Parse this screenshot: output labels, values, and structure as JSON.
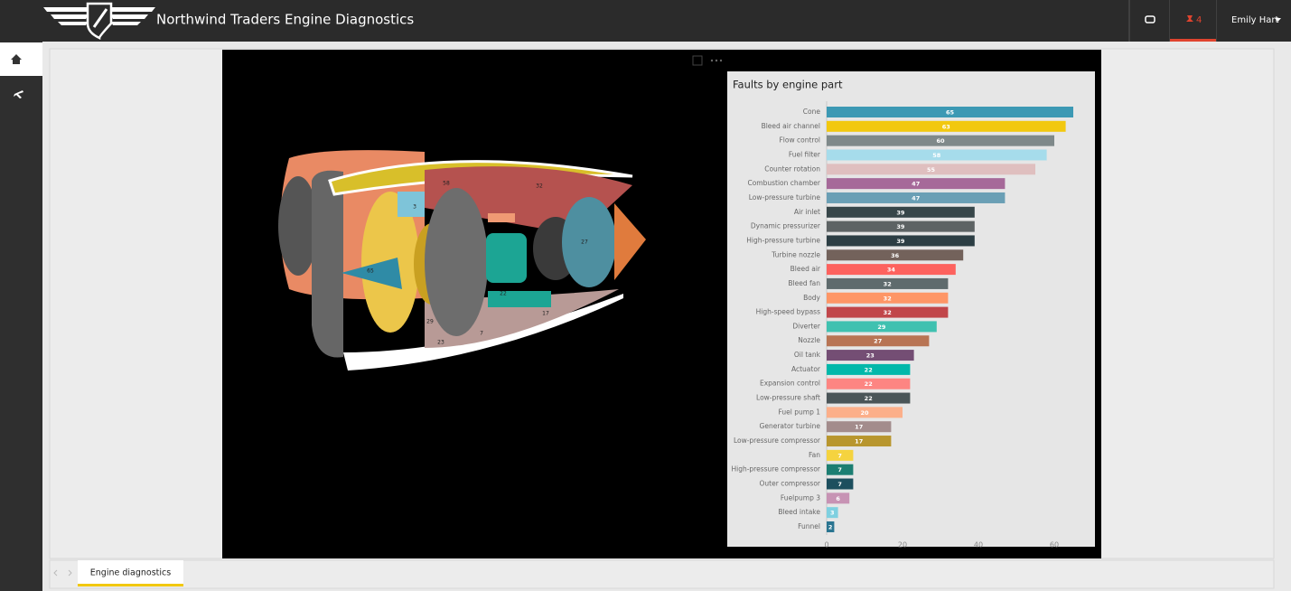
{
  "header": {
    "title": "Northwind Traders Engine Diagnostics"
  },
  "notifications": {
    "count": 4
  },
  "user": {
    "name": "Emily Hart"
  },
  "chart_data": {
    "type": "bar",
    "orientation": "horizontal",
    "title": "Faults by engine part",
    "categories": [
      "Cone",
      "Bleed air channel",
      "Flow control",
      "Fuel filter",
      "Counter rotation",
      "Combustion chamber",
      "Low-pressure turbine",
      "Air inlet",
      "Dynamic pressurizer",
      "High-pressure turbine",
      "Turbine nozzle",
      "Bleed air",
      "Bleed fan",
      "Body",
      "High-speed bypass",
      "Diverter",
      "Nozzle",
      "Oil tank",
      "Actuator",
      "Expansion control",
      "Low-pressure shaft",
      "Fuel pump 1",
      "Generator turbine",
      "Low-pressure compressor",
      "Fan",
      "High-pressure compressor",
      "Outer compressor",
      "Fuelpump 3",
      "Bleed intake",
      "Funnel"
    ],
    "values": [
      65,
      63,
      60,
      58,
      55,
      47,
      47,
      39,
      39,
      39,
      36,
      34,
      32,
      32,
      32,
      29,
      27,
      23,
      22,
      22,
      22,
      20,
      17,
      17,
      7,
      7,
      7,
      6,
      3,
      2
    ],
    "colors": [
      "#3c99b4",
      "#f2c80f",
      "#7f898a",
      "#a6dceb",
      "#dfbfbf",
      "#a66999",
      "#6a9fb5",
      "#374649",
      "#5d6364",
      "#2c3e44",
      "#73625b",
      "#fd625e",
      "#5f6b6d",
      "#fe9666",
      "#c1464a",
      "#3fc1b0",
      "#b87454",
      "#744e74",
      "#01b8aa",
      "#fd8582",
      "#4a5558",
      "#fcaf8a",
      "#a38c8c",
      "#b8962e",
      "#f5d33f",
      "#1c7e72",
      "#1d4f5e",
      "#c793b4",
      "#7fd0e0",
      "#2a7591"
    ],
    "xlim": [
      0,
      70
    ],
    "xticks": [
      0,
      20,
      40,
      60
    ],
    "grid": false
  },
  "engine_labels": [
    32,
    65,
    17,
    7,
    58,
    3,
    29,
    23,
    27,
    22
  ],
  "tabs": [
    "Engine diagnostics"
  ]
}
